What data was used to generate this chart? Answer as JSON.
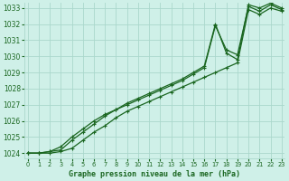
{
  "title": "Graphe pression niveau de la mer (hPa)",
  "background_color": "#cff0e8",
  "grid_color": "#aad8cc",
  "line_color": "#1a6620",
  "xlim": [
    -0.3,
    23.3
  ],
  "ylim": [
    1023.7,
    1033.3
  ],
  "xticks": [
    0,
    1,
    2,
    3,
    4,
    5,
    6,
    7,
    8,
    9,
    10,
    11,
    12,
    13,
    14,
    15,
    16,
    17,
    18,
    19,
    20,
    21,
    22,
    23
  ],
  "yticks": [
    1024,
    1025,
    1026,
    1027,
    1028,
    1029,
    1030,
    1031,
    1032,
    1033
  ],
  "line1_x": [
    0,
    1,
    2,
    3,
    4,
    5,
    6,
    7,
    8,
    9,
    10,
    11,
    12,
    13,
    14,
    15,
    16,
    17,
    18,
    19,
    20,
    21,
    22,
    23
  ],
  "line1_y": [
    1024.0,
    1024.0,
    1024.1,
    1024.2,
    1024.8,
    1025.3,
    1025.8,
    1026.3,
    1026.7,
    1027.0,
    1027.3,
    1027.6,
    1027.9,
    1028.2,
    1028.5,
    1028.9,
    1029.3,
    1031.9,
    1030.4,
    1030.1,
    1033.1,
    1032.8,
    1033.2,
    1032.9
  ],
  "line2_x": [
    0,
    1,
    2,
    3,
    4,
    5,
    6,
    7,
    8,
    9,
    10,
    11,
    12,
    13,
    14,
    15,
    16,
    17,
    18,
    19,
    20,
    21,
    22,
    23
  ],
  "line2_y": [
    1024.0,
    1024.0,
    1024.0,
    1024.1,
    1024.3,
    1024.8,
    1025.3,
    1025.7,
    1026.2,
    1026.6,
    1026.9,
    1027.2,
    1027.5,
    1027.8,
    1028.1,
    1028.4,
    1028.7,
    1029.0,
    1029.3,
    1029.6,
    1032.9,
    1032.6,
    1033.0,
    1032.8
  ],
  "line3_x": [
    0,
    1,
    2,
    3,
    4,
    5,
    6,
    7,
    8,
    9,
    10,
    11,
    12,
    13,
    14,
    15,
    16,
    17,
    18,
    19,
    20,
    21,
    22,
    23
  ],
  "line3_y": [
    1024.0,
    1024.0,
    1024.1,
    1024.4,
    1025.0,
    1025.5,
    1026.0,
    1026.4,
    1026.7,
    1027.1,
    1027.4,
    1027.7,
    1028.0,
    1028.3,
    1028.6,
    1029.0,
    1029.4,
    1032.0,
    1030.2,
    1029.8,
    1033.2,
    1033.0,
    1033.3,
    1033.0
  ]
}
